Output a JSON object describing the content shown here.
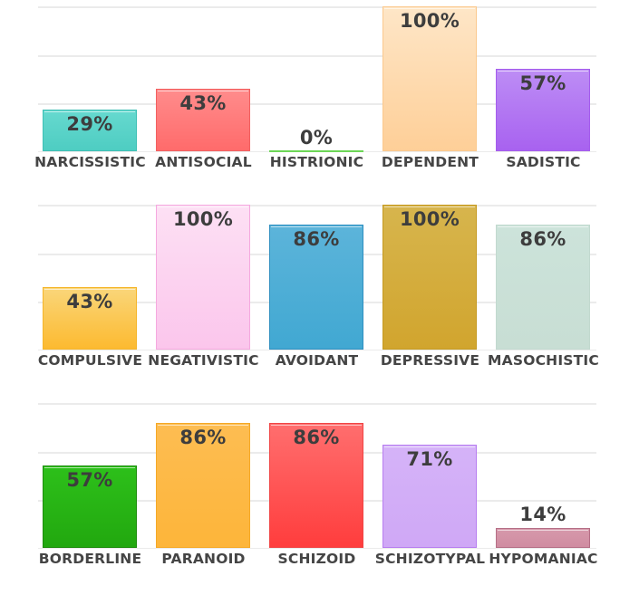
{
  "chart_data": [
    {
      "type": "bar",
      "title": "",
      "xlabel": "",
      "ylabel": "",
      "ylim": [
        0,
        100
      ],
      "grid": true,
      "categories": [
        "NARCISSISTIC",
        "ANTISOCIAL",
        "HISTRIONIC",
        "DEPENDENT",
        "SADISTIC"
      ],
      "values": [
        29,
        43,
        0,
        100,
        57
      ],
      "value_labels": [
        "29%",
        "43%",
        "0%",
        "100%",
        "57%"
      ],
      "colors": [
        "#5dd6cb",
        "#ff7b7b",
        "#7ee06a",
        "#fed9a8",
        "#b57cf3"
      ]
    },
    {
      "type": "bar",
      "title": "",
      "xlabel": "",
      "ylabel": "",
      "ylim": [
        0,
        100
      ],
      "grid": true,
      "categories": [
        "COMPULSIVE",
        "NEGATIVISTIC",
        "AVOIDANT",
        "DEPRESSIVE",
        "MASOCHISTIC"
      ],
      "values": [
        43,
        100,
        86,
        100,
        86
      ],
      "value_labels": [
        "43%",
        "100%",
        "86%",
        "100%",
        "86%"
      ],
      "colors": [
        "#fbc94a",
        "#fcd6f0",
        "#4eaed6",
        "#d4ae3e",
        "#cbe1d8"
      ]
    },
    {
      "type": "bar",
      "title": "",
      "xlabel": "",
      "ylabel": "",
      "ylim": [
        0,
        100
      ],
      "grid": true,
      "categories": [
        "BORDERLINE",
        "PARANOID",
        "SCHIZOID",
        "SCHIZOTYPAL",
        "HYPOMANIAC"
      ],
      "values": [
        57,
        86,
        86,
        71,
        14
      ],
      "value_labels": [
        "57%",
        "86%",
        "86%",
        "71%",
        "14%"
      ],
      "colors": [
        "#28b515",
        "#fdb94a",
        "#ff5a5a",
        "#d2aff7",
        "#d392a6"
      ]
    }
  ],
  "style": {
    "bars": [
      [
        {
          "top": "#66d9cf",
          "bottom": "#4ecdc2",
          "border": "#3fc0b5"
        },
        {
          "top": "#ff8c8c",
          "bottom": "#ff6b6b",
          "border": "#f26060"
        },
        {
          "top": "#8be57a",
          "bottom": "#74dc5e",
          "border": "#6cd656"
        },
        {
          "top": "#fee6c7",
          "bottom": "#fecf98",
          "border": "#fbc98e"
        },
        {
          "top": "#bd8df5",
          "bottom": "#a862f0",
          "border": "#a55ded"
        }
      ],
      [
        {
          "top": "#fad67a",
          "bottom": "#fcba30",
          "border": "#f5b52a"
        },
        {
          "top": "#fde0f4",
          "bottom": "#fbc6ec",
          "border": "#f5a9df"
        },
        {
          "top": "#5cb4da",
          "bottom": "#41a8d2",
          "border": "#2f8fc0"
        },
        {
          "top": "#d7b54d",
          "bottom": "#d1a52e",
          "border": "#c59a22"
        },
        {
          "top": "#cce3da",
          "bottom": "#c8ded4",
          "border": "#c2d9cf"
        }
      ],
      [
        {
          "top": "#2dc01a",
          "bottom": "#22a80f",
          "border": "#1e8c0e"
        },
        {
          "top": "#fdbd52",
          "bottom": "#fdb53a",
          "border": "#f5a927"
        },
        {
          "top": "#ff6e6e",
          "bottom": "#ff3d3d",
          "border": "#f04545"
        },
        {
          "top": "#d5b3f8",
          "bottom": "#cfa8f6",
          "border": "#b77ef0"
        },
        {
          "top": "#d699ab",
          "bottom": "#d08ca1",
          "border": "#b56f86"
        }
      ]
    ]
  }
}
